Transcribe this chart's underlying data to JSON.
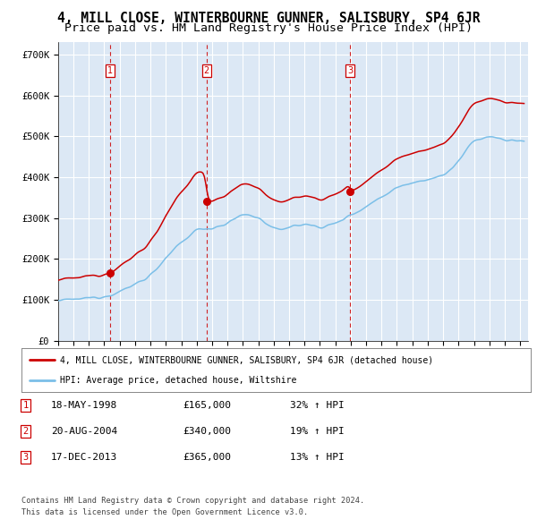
{
  "title": "4, MILL CLOSE, WINTERBOURNE GUNNER, SALISBURY, SP4 6JR",
  "subtitle": "Price paid vs. HM Land Registry's House Price Index (HPI)",
  "legend_line1": "4, MILL CLOSE, WINTERBOURNE GUNNER, SALISBURY, SP4 6JR (detached house)",
  "legend_line2": "HPI: Average price, detached house, Wiltshire",
  "transactions": [
    {
      "num": 1,
      "date": "18-MAY-1998",
      "date_decimal": 1998.38,
      "price": 165000,
      "hpi_pct": "32% ↑ HPI"
    },
    {
      "num": 2,
      "date": "20-AUG-2004",
      "date_decimal": 2004.64,
      "price": 340000,
      "hpi_pct": "19% ↑ HPI"
    },
    {
      "num": 3,
      "date": "17-DEC-2013",
      "date_decimal": 2013.96,
      "price": 365000,
      "hpi_pct": "13% ↑ HPI"
    }
  ],
  "footnote1": "Contains HM Land Registry data © Crown copyright and database right 2024.",
  "footnote2": "This data is licensed under the Open Government Licence v3.0.",
  "xlim": [
    1995.0,
    2025.5
  ],
  "ylim": [
    0,
    730000
  ],
  "yticks": [
    0,
    100000,
    200000,
    300000,
    400000,
    500000,
    600000,
    700000
  ],
  "ytick_labels": [
    "£0",
    "£100K",
    "£200K",
    "£300K",
    "£400K",
    "£500K",
    "£600K",
    "£700K"
  ],
  "xticks": [
    1995,
    1996,
    1997,
    1998,
    1999,
    2000,
    2001,
    2002,
    2003,
    2004,
    2005,
    2006,
    2007,
    2008,
    2009,
    2010,
    2011,
    2012,
    2013,
    2014,
    2015,
    2016,
    2017,
    2018,
    2019,
    2020,
    2021,
    2022,
    2023,
    2024,
    2025
  ],
  "hpi_line_color": "#7bbfe8",
  "property_line_color": "#cc0000",
  "dot_color": "#cc0000",
  "vline_color": "#cc0000",
  "bg_color": "#dce8f5",
  "grid_color": "#ffffff",
  "title_fontsize": 10.5,
  "subtitle_fontsize": 9.5,
  "hpi_anchors_t": [
    1995.0,
    1996.0,
    1997.0,
    1998.0,
    1999.0,
    2000.0,
    2001.0,
    2002.0,
    2003.0,
    2004.0,
    2005.0,
    2006.0,
    2007.0,
    2008.0,
    2009.0,
    2010.0,
    2011.0,
    2012.0,
    2013.0,
    2014.0,
    2015.0,
    2016.0,
    2017.0,
    2018.0,
    2019.0,
    2020.0,
    2021.0,
    2022.0,
    2023.0,
    2024.0,
    2025.0
  ],
  "hpi_anchors_v": [
    97000,
    100000,
    104000,
    109000,
    119000,
    138000,
    160000,
    200000,
    240000,
    272000,
    276000,
    286000,
    310000,
    302000,
    270000,
    278000,
    285000,
    278000,
    285000,
    308000,
    328000,
    352000,
    375000,
    388000,
    395000,
    402000,
    438000,
    490000,
    500000,
    490000,
    488000
  ]
}
